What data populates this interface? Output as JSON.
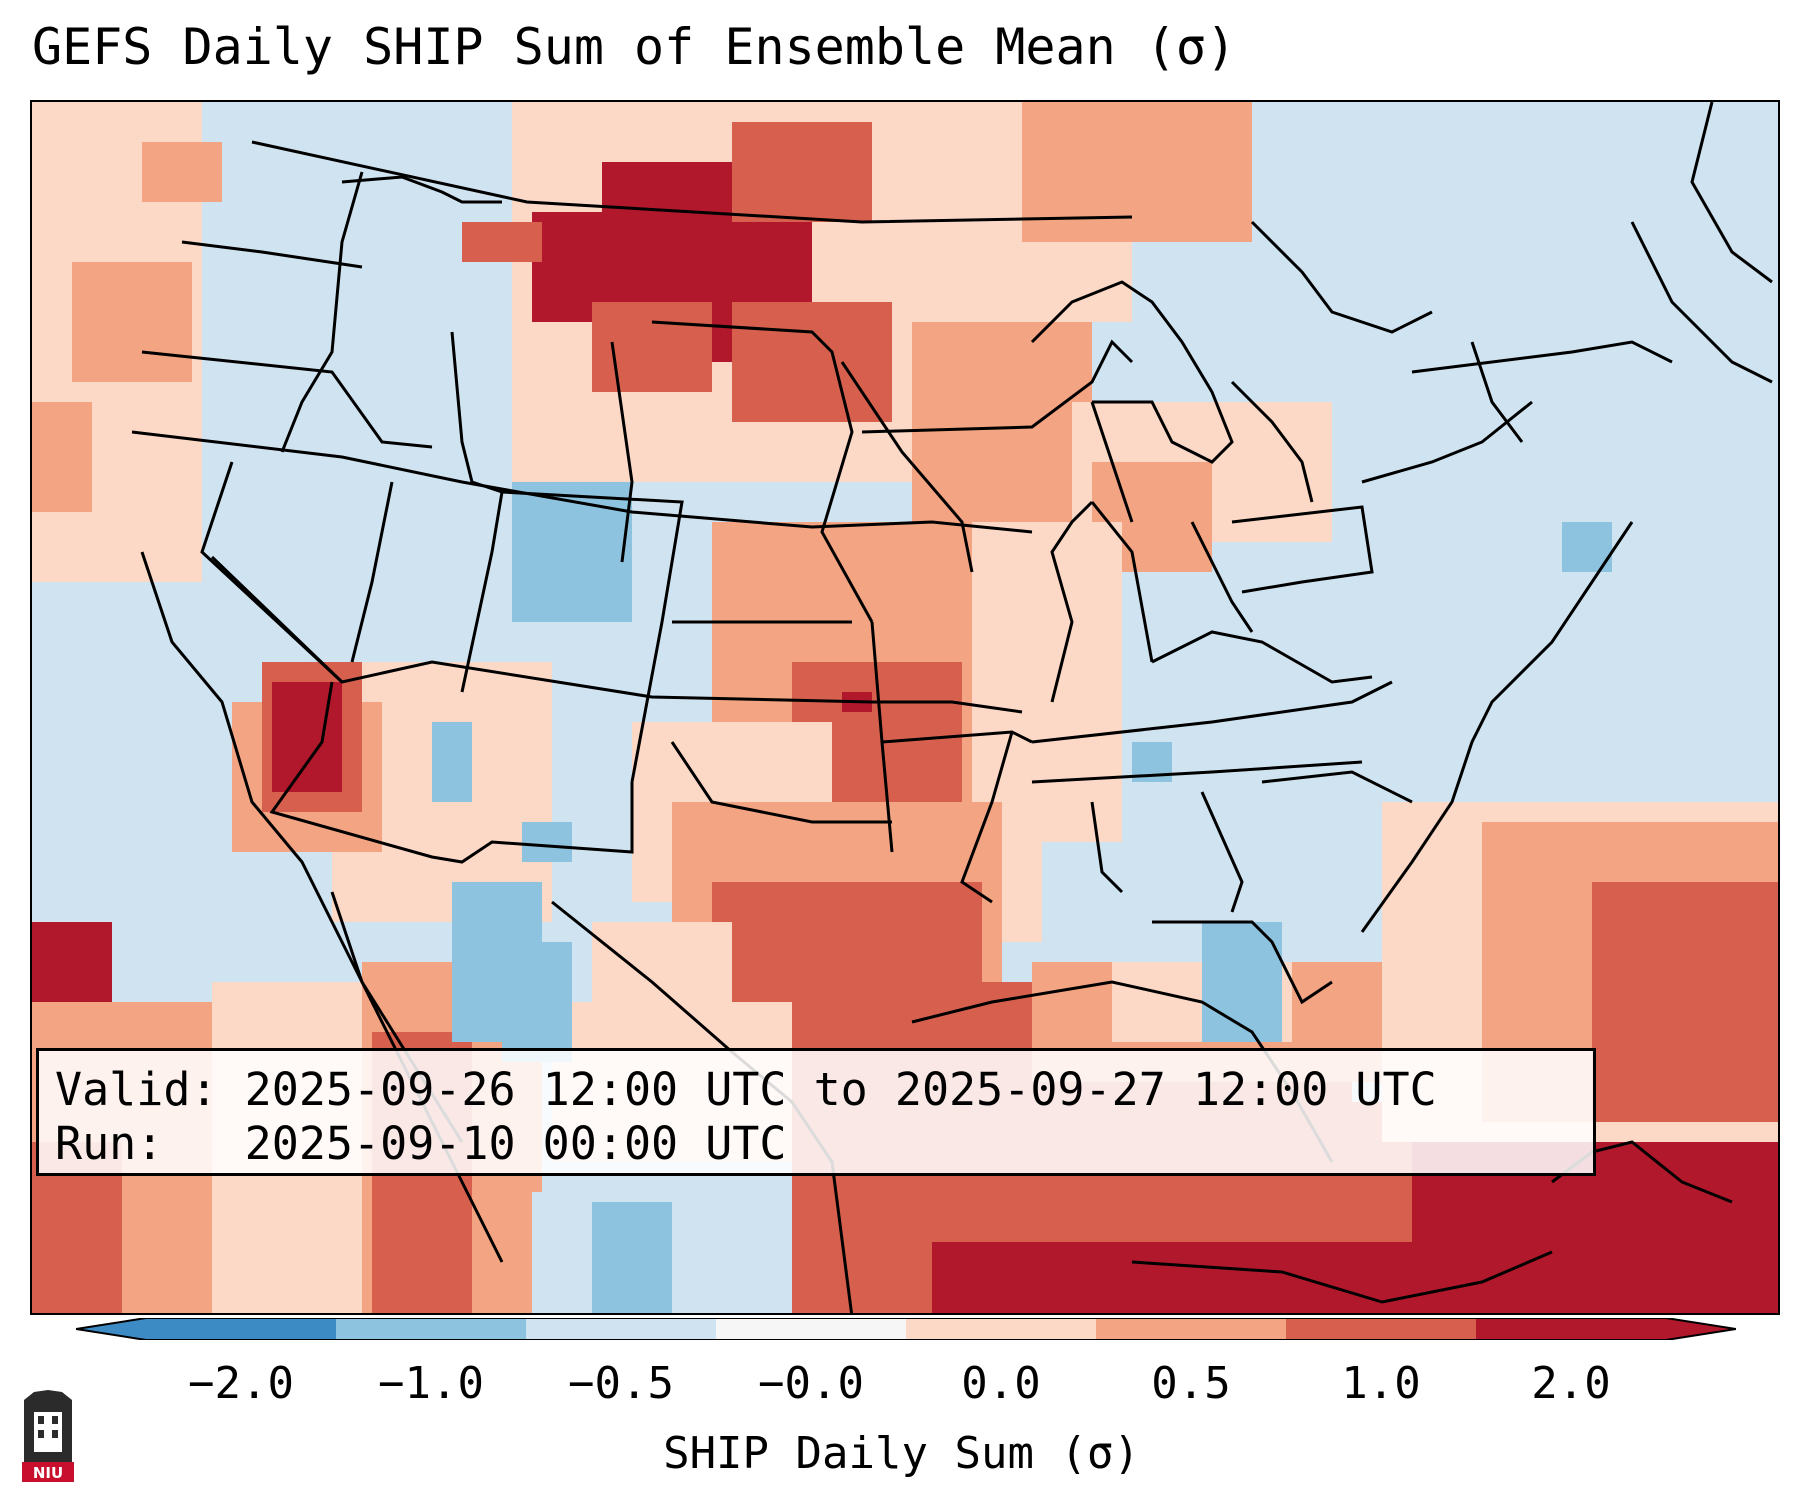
{
  "title": "GEFS Daily SHIP Sum of Ensemble Mean (σ)",
  "valid_line": "Valid: 2025-09-26 12:00 UTC to 2025-09-27 12:00 UTC",
  "run_line": "Run:   2025-09-10 00:00 UTC",
  "colorbar": {
    "label": "SHIP Daily Sum (σ)",
    "ticks": [
      "−2.0",
      "−1.0",
      "−0.5",
      "−0.0",
      "0.0",
      "0.5",
      "1.0",
      "2.0"
    ],
    "colors": [
      "#3c8bc4",
      "#8ec3df",
      "#cfe3f0",
      "#f6f6f6",
      "#fbd9c6",
      "#f2a483",
      "#d6604d",
      "#b2182b"
    ]
  },
  "logo": {
    "text": "NIU",
    "color": "#c8102e"
  }
}
